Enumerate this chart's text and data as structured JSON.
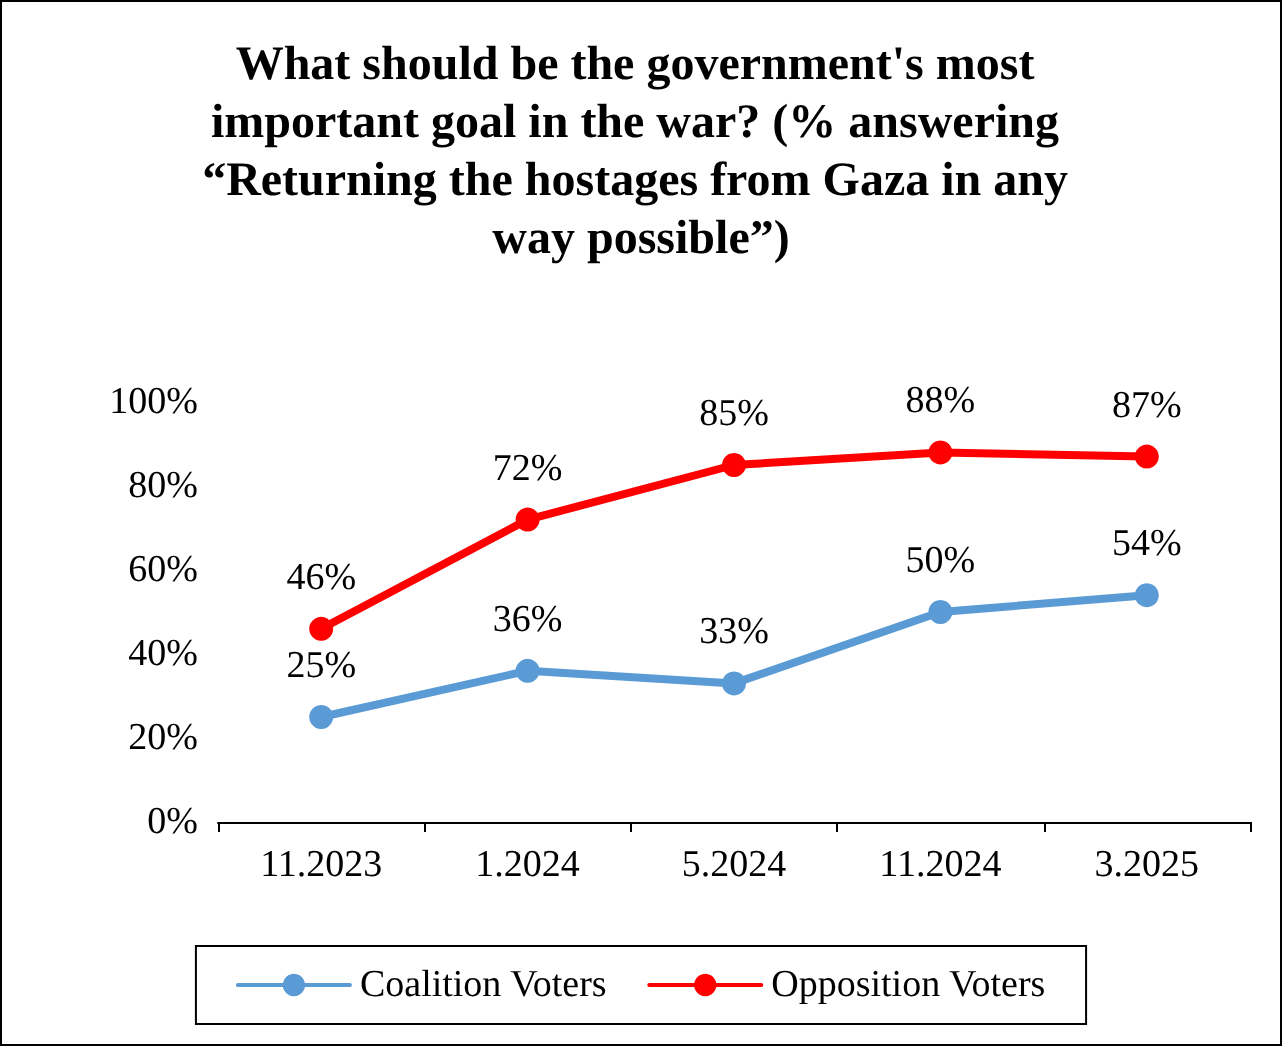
{
  "chart_data": {
    "type": "line",
    "title": "What should be the government's most important goal in the war? (% answering “Returning the hostages from Gaza in any way possible”)",
    "categories": [
      "11.2023",
      "1.2024",
      "5.2024",
      "11.2024",
      "3.2025"
    ],
    "series": [
      {
        "name": "Coalition Voters",
        "color": "#5b9bd5",
        "values": [
          25,
          36,
          33,
          50,
          54
        ],
        "value_labels": [
          "25%",
          "36%",
          "33%",
          "50%",
          "54%"
        ]
      },
      {
        "name": "Opposition Voters",
        "color": "#ff0000",
        "values": [
          46,
          72,
          85,
          88,
          87
        ],
        "value_labels": [
          "46%",
          "72%",
          "85%",
          "88%",
          "87%"
        ]
      }
    ],
    "ylim": [
      0,
      100
    ],
    "yticks": [
      {
        "value": 0,
        "label": "0%"
      },
      {
        "value": 20,
        "label": "20%"
      },
      {
        "value": 40,
        "label": "40%"
      },
      {
        "value": 60,
        "label": "60%"
      },
      {
        "value": 80,
        "label": "80%"
      },
      {
        "value": 100,
        "label": "100%"
      }
    ],
    "grid": false,
    "legend": "bottom",
    "marker": "circle",
    "line_style": "solid"
  }
}
